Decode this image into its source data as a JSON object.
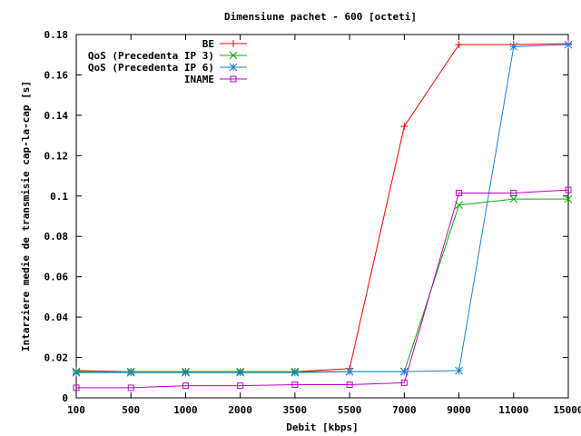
{
  "chart_data": {
    "type": "line",
    "title": "Dimensiune pachet - 600 [octeti]",
    "xlabel": "Debit [kbps]",
    "ylabel": "Intarziere medie de transmisie cap-la-cap [s]",
    "categories": [
      "100",
      "500",
      "1000",
      "2000",
      "3500",
      "5500",
      "7000",
      "9000",
      "11000",
      "15000"
    ],
    "y_ticks": [
      "0",
      "0.02",
      "0.04",
      "0.06",
      "0.08",
      "0.1",
      "0.12",
      "0.14",
      "0.16",
      "0.18"
    ],
    "ylim": [
      0,
      0.18
    ],
    "grid": false,
    "legend_position": "top-right",
    "series": [
      {
        "name": "BE",
        "color": "#ff0000",
        "marker": "plus",
        "values": [
          0.0135,
          0.013,
          0.013,
          0.013,
          0.013,
          0.0145,
          0.1345,
          0.175,
          0.175,
          0.1755
        ]
      },
      {
        "name": "QoS (Precedenta IP 3)",
        "color": "#00b000",
        "marker": "cross",
        "values": [
          0.013,
          0.013,
          0.013,
          0.013,
          0.013,
          0.013,
          0.013,
          0.0955,
          0.0985,
          0.0985
        ]
      },
      {
        "name": "QoS (Precedenta IP 6)",
        "color": "#1a7fd6",
        "marker": "star",
        "values": [
          0.0125,
          0.0125,
          0.0125,
          0.0125,
          0.0125,
          0.013,
          0.013,
          0.0135,
          0.174,
          0.175
        ]
      },
      {
        "name": "INAME",
        "color": "#c000c0",
        "marker": "square",
        "values": [
          0.005,
          0.005,
          0.006,
          0.006,
          0.0065,
          0.0065,
          0.0075,
          0.1015,
          0.1015,
          0.103
        ]
      }
    ]
  }
}
